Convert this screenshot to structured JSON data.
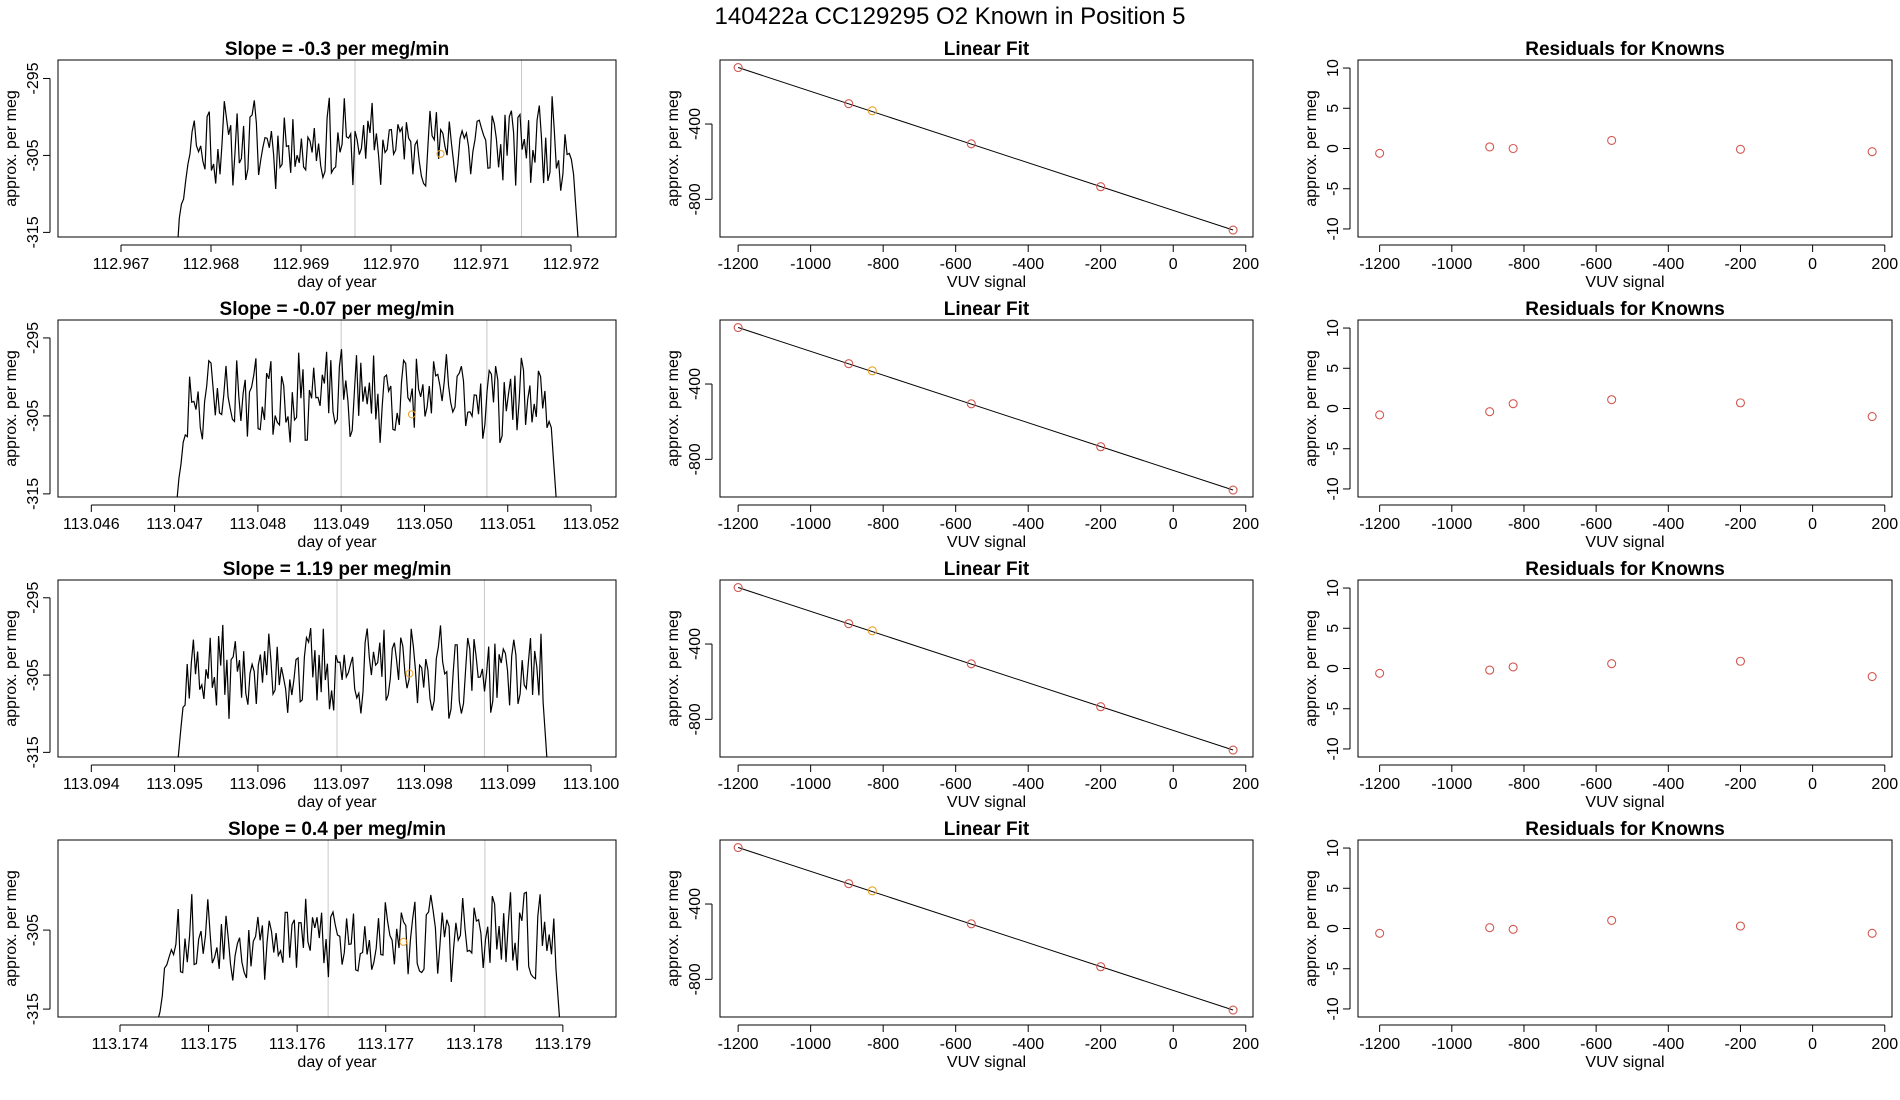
{
  "title": "140422a      CC129295   O2 Known in Position  5",
  "colors": {
    "line": "#000000",
    "frame": "#000000",
    "vline": "#c8c8c8",
    "known_point": "#d2574f",
    "sample_point": "#e8a02a"
  },
  "chart_data": [
    {
      "id": "r1-trace",
      "type": "line",
      "title": "Slope =  -0.3  per meg/min",
      "xlabel": "day of year",
      "ylabel": "approx. per meg",
      "xlim": [
        112.9663,
        112.9725
      ],
      "ylim": [
        -315.6,
        -292.6
      ],
      "xticks": [
        112.967,
        112.968,
        112.969,
        112.97,
        112.971,
        112.972
      ],
      "xtick_labels": [
        "112.967",
        "112.968",
        "112.969",
        "112.970",
        "112.971",
        "112.972"
      ],
      "yticks": [
        -295,
        -305,
        -315
      ],
      "ytick_labels": [
        "-295",
        "-305",
        "-315"
      ],
      "trace_start": 112.9676,
      "trace_end": 112.9721,
      "trace_n": 190,
      "trace_seed": 11,
      "trace_base": -303.5,
      "vlines": [
        112.9696,
        112.97145
      ],
      "marker": [
        112.97055,
        -304.8
      ]
    },
    {
      "id": "r1-fit",
      "type": "scatter",
      "title": "Linear Fit",
      "xlabel": "VUV signal",
      "ylabel": "approx. per meg",
      "xlim": [
        -1250,
        220
      ],
      "ylim": [
        -1000,
        -60
      ],
      "xticks": [
        -1200,
        -1000,
        -800,
        -600,
        -400,
        -200,
        0,
        200
      ],
      "xtick_labels": [
        "-1200",
        "-1000",
        "-800",
        "-600",
        "-400",
        "-200",
        "0",
        "200"
      ],
      "yticks": [
        -400,
        -800
      ],
      "ytick_labels": [
        "-400",
        "-800"
      ],
      "points": [
        [
          -1200,
          -100
        ],
        [
          -895,
          -292
        ],
        [
          -830,
          -330
        ],
        [
          -557,
          -505
        ],
        [
          -200,
          -733
        ],
        [
          165,
          -963
        ]
      ],
      "sample_index": 2,
      "fit_line": [
        [
          -1200,
          -100
        ],
        [
          165,
          -963
        ]
      ]
    },
    {
      "id": "r1-resid",
      "type": "scatter",
      "title": "Residuals for Knowns",
      "xlabel": "VUV signal",
      "ylabel": "approx. per meg",
      "xlim": [
        -1260,
        220
      ],
      "ylim": [
        -11,
        11
      ],
      "xticks": [
        -1200,
        -1000,
        -800,
        -600,
        -400,
        -200,
        0,
        200
      ],
      "xtick_labels": [
        "-1200",
        "-1000",
        "-800",
        "-600",
        "-400",
        "-200",
        "0",
        "200"
      ],
      "yticks": [
        10,
        5,
        0,
        -5,
        -10
      ],
      "ytick_labels": [
        "10",
        "5",
        "0",
        "-5",
        "-10"
      ],
      "points": [
        [
          -1200,
          -0.6
        ],
        [
          -895,
          0.2
        ],
        [
          -830,
          0
        ],
        [
          -557,
          1.0
        ],
        [
          -200,
          -0.1
        ],
        [
          165,
          -0.4
        ]
      ]
    },
    {
      "id": "r2-trace",
      "type": "line",
      "title": "Slope =  -0.07  per meg/min",
      "xlabel": "day of year",
      "ylabel": "approx. per meg",
      "xlim": [
        113.0456,
        113.0523
      ],
      "ylim": [
        -315.4,
        -292.7
      ],
      "xticks": [
        113.046,
        113.047,
        113.048,
        113.049,
        113.05,
        113.051,
        113.052
      ],
      "xtick_labels": [
        "113.046",
        "113.047",
        "113.048",
        "113.049",
        "113.050",
        "113.051",
        "113.052"
      ],
      "yticks": [
        -295,
        -305,
        -315
      ],
      "ytick_labels": [
        "-295",
        "-305",
        "-315"
      ],
      "trace_start": 113.047,
      "trace_end": 113.0516,
      "trace_n": 180,
      "trace_seed": 23,
      "trace_base": -302.5,
      "vlines": [
        113.049,
        113.05075
      ],
      "marker": [
        113.04985,
        -304.8
      ]
    },
    {
      "id": "r2-fit",
      "type": "scatter",
      "title": "Linear Fit",
      "xlabel": "VUV signal",
      "ylabel": "approx. per meg",
      "xlim": [
        -1250,
        220
      ],
      "ylim": [
        -1000,
        -60
      ],
      "xticks": [
        -1200,
        -1000,
        -800,
        -600,
        -400,
        -200,
        0,
        200
      ],
      "xtick_labels": [
        "-1200",
        "-1000",
        "-800",
        "-600",
        "-400",
        "-200",
        "0",
        "200"
      ],
      "yticks": [
        -400,
        -800
      ],
      "ytick_labels": [
        "-400",
        "-800"
      ],
      "points": [
        [
          -1200,
          -100
        ],
        [
          -895,
          -292
        ],
        [
          -830,
          -330
        ],
        [
          -557,
          -505
        ],
        [
          -200,
          -733
        ],
        [
          165,
          -963
        ]
      ],
      "sample_index": 2,
      "fit_line": [
        [
          -1200,
          -100
        ],
        [
          165,
          -963
        ]
      ]
    },
    {
      "id": "r2-resid",
      "type": "scatter",
      "title": "Residuals for Knowns",
      "xlabel": "VUV signal",
      "ylabel": "approx. per meg",
      "xlim": [
        -1260,
        220
      ],
      "ylim": [
        -11,
        11
      ],
      "xticks": [
        -1200,
        -1000,
        -800,
        -600,
        -400,
        -200,
        0,
        200
      ],
      "xtick_labels": [
        "-1200",
        "-1000",
        "-800",
        "-600",
        "-400",
        "-200",
        "0",
        "200"
      ],
      "yticks": [
        10,
        5,
        0,
        -5,
        -10
      ],
      "ytick_labels": [
        "10",
        "5",
        "0",
        "-5",
        "-10"
      ],
      "points": [
        [
          -1200,
          -0.8
        ],
        [
          -895,
          -0.4
        ],
        [
          -830,
          0.6
        ],
        [
          -557,
          1.1
        ],
        [
          -200,
          0.7
        ],
        [
          165,
          -1.0
        ]
      ]
    },
    {
      "id": "r3-trace",
      "type": "line",
      "title": "Slope =  1.19  per meg/min",
      "xlabel": "day of year",
      "ylabel": "approx. per meg",
      "xlim": [
        113.0936,
        113.1003
      ],
      "ylim": [
        -315.6,
        -292.7
      ],
      "xticks": [
        113.094,
        113.095,
        113.096,
        113.097,
        113.098,
        113.099,
        113.1
      ],
      "xtick_labels": [
        "113.094",
        "113.095",
        "113.096",
        "113.097",
        "113.098",
        "113.099",
        "113.100"
      ],
      "yticks": [
        -295,
        -305,
        -315
      ],
      "ytick_labels": [
        "-295",
        "-305",
        "-315"
      ],
      "trace_start": 113.095,
      "trace_end": 113.0995,
      "trace_n": 180,
      "trace_seed": 37,
      "trace_base": -304.5,
      "vlines": [
        113.09695,
        113.09872
      ],
      "marker": [
        113.09782,
        -304.8
      ]
    },
    {
      "id": "r3-fit",
      "type": "scatter",
      "title": "Linear Fit",
      "xlabel": "VUV signal",
      "ylabel": "approx. per meg",
      "xlim": [
        -1250,
        220
      ],
      "ylim": [
        -1000,
        -60
      ],
      "xticks": [
        -1200,
        -1000,
        -800,
        -600,
        -400,
        -200,
        0,
        200
      ],
      "xtick_labels": [
        "-1200",
        "-1000",
        "-800",
        "-600",
        "-400",
        "-200",
        "0",
        "200"
      ],
      "yticks": [
        -400,
        -800
      ],
      "ytick_labels": [
        "-400",
        "-800"
      ],
      "points": [
        [
          -1200,
          -100
        ],
        [
          -895,
          -292
        ],
        [
          -830,
          -330
        ],
        [
          -557,
          -505
        ],
        [
          -200,
          -733
        ],
        [
          165,
          -963
        ]
      ],
      "sample_index": 2,
      "fit_line": [
        [
          -1200,
          -100
        ],
        [
          165,
          -963
        ]
      ]
    },
    {
      "id": "r3-resid",
      "type": "scatter",
      "title": "Residuals for Knowns",
      "xlabel": "VUV signal",
      "ylabel": "approx. per meg",
      "xlim": [
        -1260,
        220
      ],
      "ylim": [
        -11,
        11
      ],
      "xticks": [
        -1200,
        -1000,
        -800,
        -600,
        -400,
        -200,
        0,
        200
      ],
      "xtick_labels": [
        "-1200",
        "-1000",
        "-800",
        "-600",
        "-400",
        "-200",
        "0",
        "200"
      ],
      "yticks": [
        10,
        5,
        0,
        -5,
        -10
      ],
      "ytick_labels": [
        "10",
        "5",
        "0",
        "-5",
        "-10"
      ],
      "points": [
        [
          -1200,
          -0.6
        ],
        [
          -895,
          -0.2
        ],
        [
          -830,
          0.2
        ],
        [
          -557,
          0.6
        ],
        [
          -200,
          0.9
        ],
        [
          165,
          -1.0
        ]
      ]
    },
    {
      "id": "r4-trace",
      "type": "line",
      "title": "Slope =  0.4  per meg/min",
      "xlabel": "day of year",
      "ylabel": "approx. per meg",
      "xlim": [
        113.1733,
        113.1796
      ],
      "ylim": [
        -316.0,
        -293.6
      ],
      "xticks": [
        113.174,
        113.175,
        113.176,
        113.177,
        113.178,
        113.179
      ],
      "xtick_labels": [
        "113.174",
        "113.175",
        "113.176",
        "113.177",
        "113.178",
        "113.179"
      ],
      "yticks": [
        -305,
        -315
      ],
      "ytick_labels": [
        "-305",
        "-315"
      ],
      "trace_start": 113.1744,
      "trace_end": 113.179,
      "trace_n": 180,
      "trace_seed": 53,
      "trace_base": -306.0,
      "vlines": [
        113.17635,
        113.17812
      ],
      "marker": [
        113.1772,
        -306.5
      ]
    },
    {
      "id": "r4-fit",
      "type": "scatter",
      "title": "Linear Fit",
      "xlabel": "VUV signal",
      "ylabel": "approx. per meg",
      "xlim": [
        -1250,
        220
      ],
      "ylim": [
        -1000,
        -60
      ],
      "xticks": [
        -1200,
        -1000,
        -800,
        -600,
        -400,
        -200,
        0,
        200
      ],
      "xtick_labels": [
        "-1200",
        "-1000",
        "-800",
        "-600",
        "-400",
        "-200",
        "0",
        "200"
      ],
      "yticks": [
        -400,
        -800
      ],
      "ytick_labels": [
        "-400",
        "-800"
      ],
      "points": [
        [
          -1200,
          -100
        ],
        [
          -895,
          -292
        ],
        [
          -830,
          -330
        ],
        [
          -557,
          -505
        ],
        [
          -200,
          -733
        ],
        [
          165,
          -963
        ]
      ],
      "sample_index": 2,
      "fit_line": [
        [
          -1200,
          -100
        ],
        [
          165,
          -963
        ]
      ]
    },
    {
      "id": "r4-resid",
      "type": "scatter",
      "title": "Residuals for Knowns",
      "xlabel": "VUV signal",
      "ylabel": "approx. per meg",
      "xlim": [
        -1260,
        220
      ],
      "ylim": [
        -11,
        11
      ],
      "xticks": [
        -1200,
        -1000,
        -800,
        -600,
        -400,
        -200,
        0,
        200
      ],
      "xtick_labels": [
        "-1200",
        "-1000",
        "-800",
        "-600",
        "-400",
        "-200",
        "0",
        "200"
      ],
      "yticks": [
        10,
        5,
        0,
        -5,
        -10
      ],
      "ytick_labels": [
        "10",
        "5",
        "0",
        "-5",
        "-10"
      ],
      "points": [
        [
          -1200,
          -0.6
        ],
        [
          -895,
          0.1
        ],
        [
          -830,
          -0.1
        ],
        [
          -557,
          1.0
        ],
        [
          -200,
          0.3
        ],
        [
          165,
          -0.6
        ]
      ]
    }
  ]
}
